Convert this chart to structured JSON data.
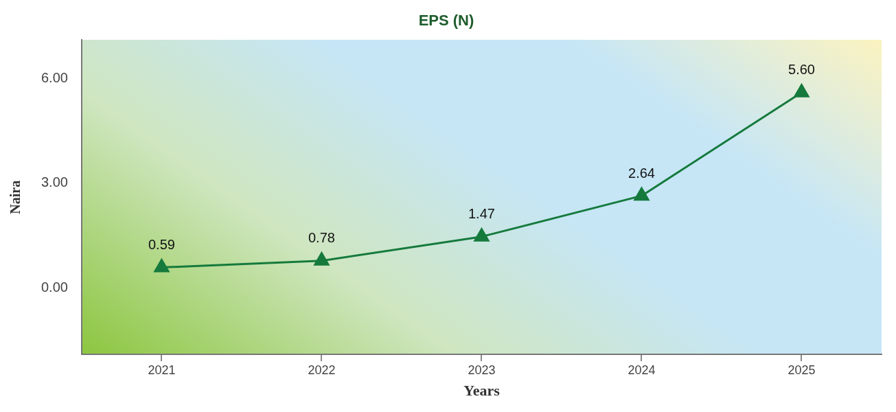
{
  "chart_data": {
    "type": "line",
    "title": "EPS (N)",
    "xlabel": "Years",
    "ylabel": "Naira",
    "categories": [
      "2021",
      "2022",
      "2023",
      "2024",
      "2025"
    ],
    "series": [
      {
        "color": "#157a3c",
        "values": [
          0.59,
          0.78,
          1.47,
          2.64,
          5.6
        ],
        "value_labels": [
          "0.59",
          "0.78",
          "1.47",
          "2.64",
          "5.60"
        ]
      }
    ],
    "ylim": [
      -1.9,
      7.1
    ],
    "yticks": [
      {
        "value": 0,
        "label": "0.00"
      },
      {
        "value": 3,
        "label": "3.00"
      },
      {
        "value": 6,
        "label": "6.00"
      }
    ],
    "grid": false,
    "legend": false,
    "marker": "triangle",
    "line_style": "solid"
  }
}
